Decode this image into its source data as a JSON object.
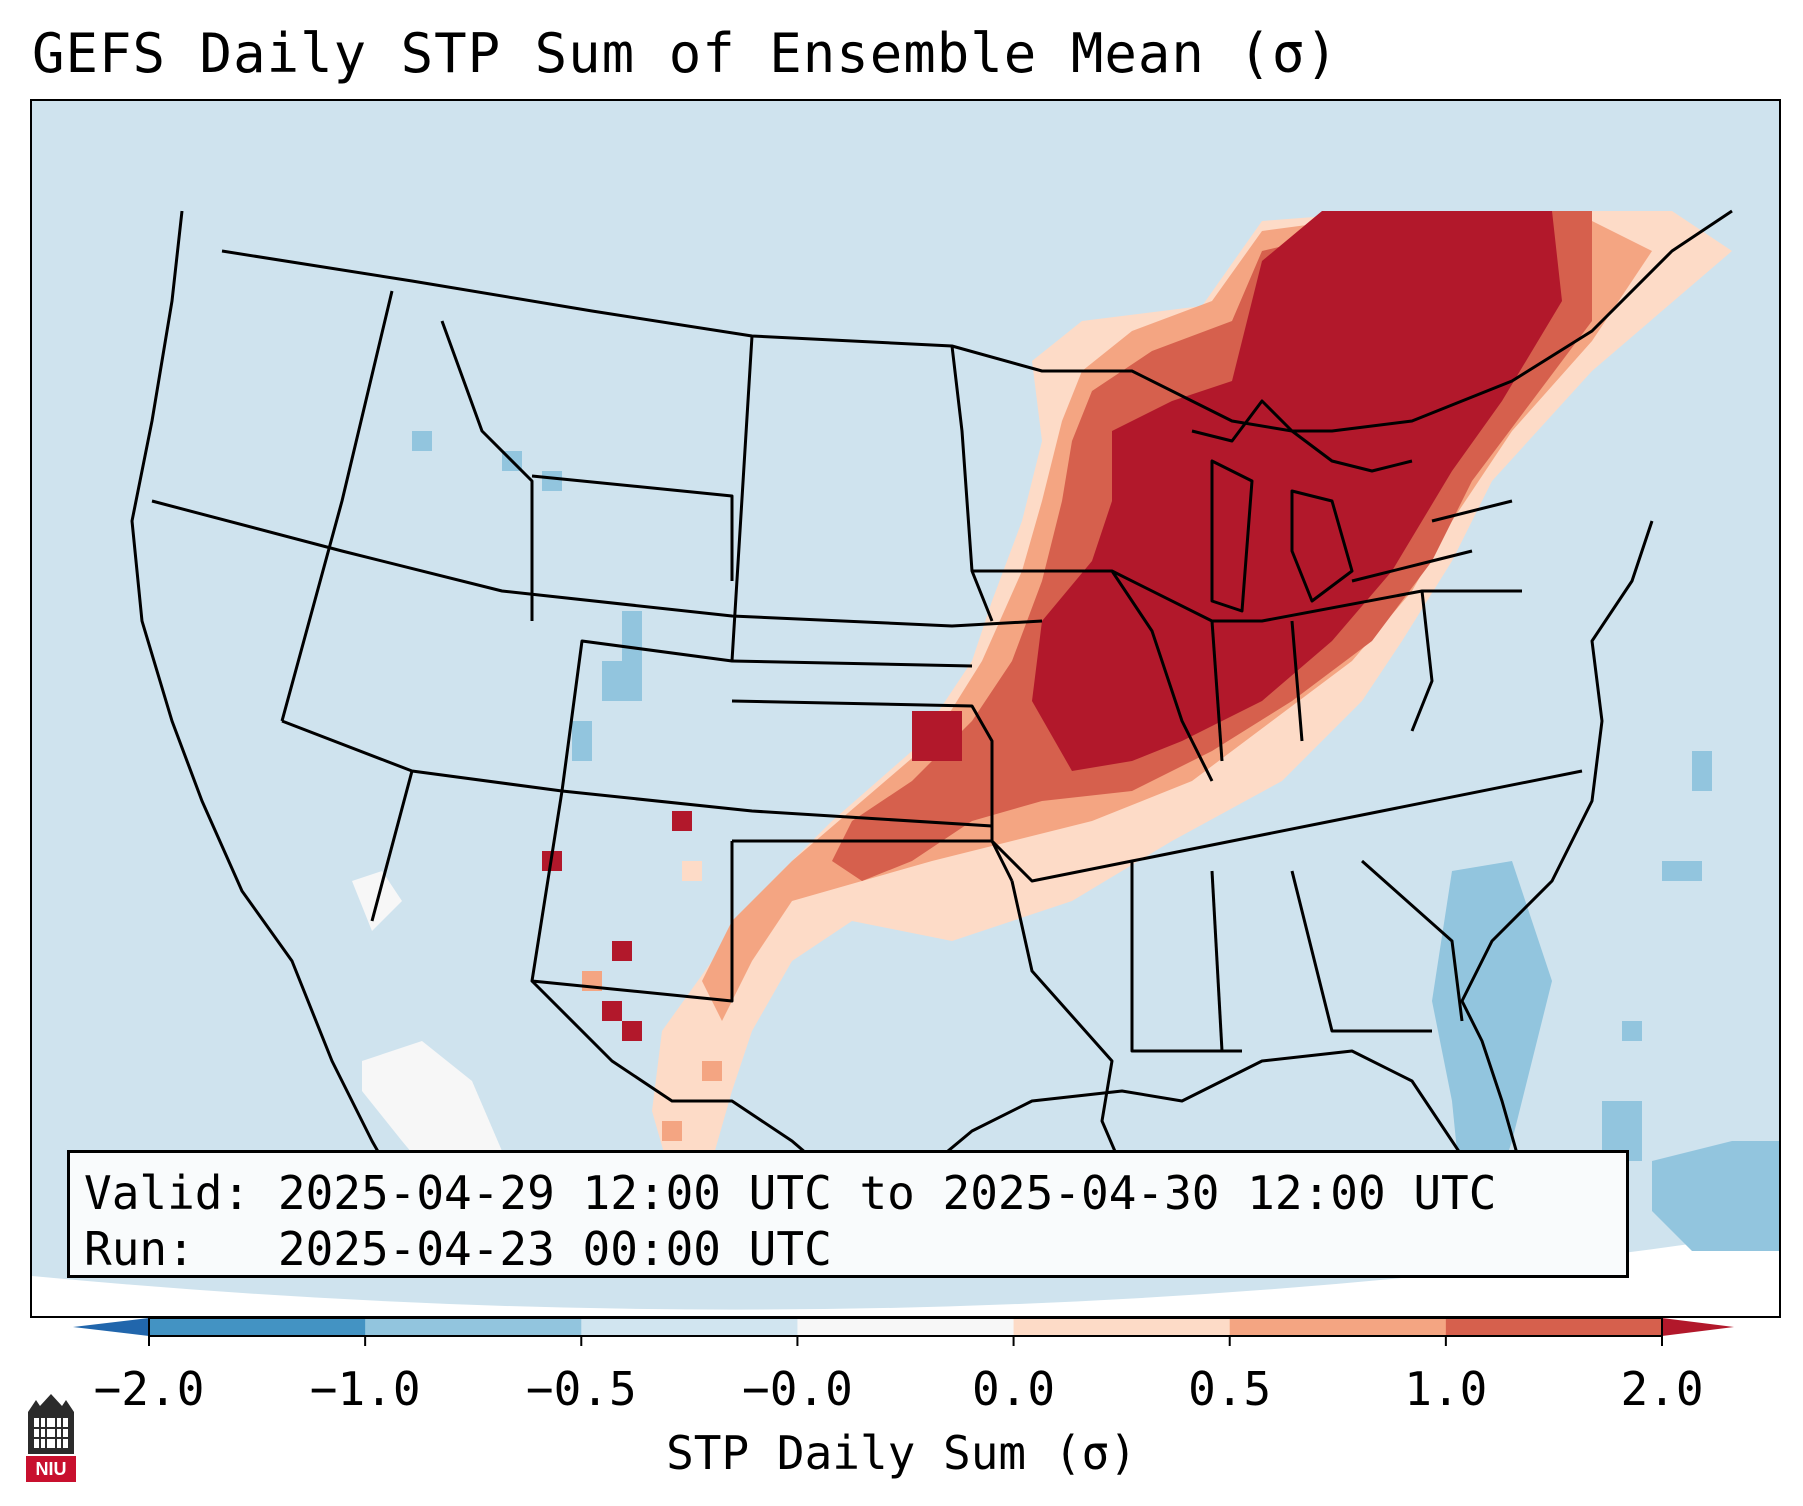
{
  "title": "GEFS Daily STP Sum of Ensemble Mean (σ)",
  "info": {
    "valid_label": "Valid:",
    "valid_value": "2025-04-29 12:00 UTC to 2025-04-30 12:00 UTC",
    "run_label": "Run:",
    "run_value": "2025-04-23 00:00 UTC"
  },
  "colorbar": {
    "label": "STP Daily Sum (σ)",
    "ticks": [
      "−2.0",
      "−1.0",
      "−0.5",
      "−0.0",
      "0.0",
      "0.5",
      "1.0",
      "2.0"
    ],
    "bins": [
      {
        "from": "-2.0",
        "to": "-1.0",
        "color": "#4393c3"
      },
      {
        "from": "-1.0",
        "to": "-0.5",
        "color": "#92c5de"
      },
      {
        "from": "-0.5",
        "to": "-0.0",
        "color": "#d1e5f0"
      },
      {
        "from": "-0.0",
        "to": "0.0",
        "color": "#f7f7f7"
      },
      {
        "from": "0.0",
        "to": "0.5",
        "color": "#fddbc7"
      },
      {
        "from": "0.5",
        "to": "1.0",
        "color": "#f4a582"
      },
      {
        "from": "1.0",
        "to": "2.0",
        "color": "#d6604d"
      }
    ],
    "under_color": "#2166ac",
    "over_color": "#b2182b"
  },
  "logo": {
    "text": "NIU"
  }
}
